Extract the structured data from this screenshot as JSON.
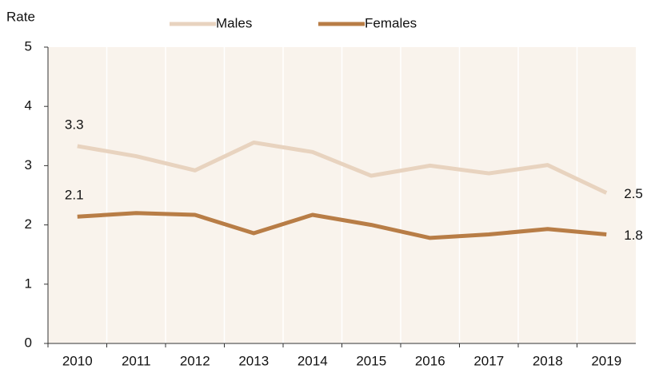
{
  "chart_data": {
    "type": "line",
    "y_label": "Rate",
    "categories": [
      "2010",
      "2011",
      "2012",
      "2013",
      "2014",
      "2015",
      "2016",
      "2017",
      "2018",
      "2019"
    ],
    "series": [
      {
        "name": "Males",
        "color": "#e8d3bf",
        "values": [
          3.33,
          3.16,
          2.92,
          3.39,
          3.23,
          2.83,
          3.0,
          2.87,
          3.01,
          2.54
        ],
        "value_labels": [
          "3.3",
          null,
          null,
          null,
          null,
          null,
          null,
          null,
          null,
          "2.5"
        ]
      },
      {
        "name": "Females",
        "color": "#b87d46",
        "values": [
          2.14,
          2.2,
          2.17,
          1.86,
          2.17,
          2.0,
          1.78,
          1.84,
          1.93,
          1.84
        ],
        "value_labels": [
          "2.1",
          null,
          null,
          null,
          null,
          null,
          null,
          null,
          null,
          "1.8"
        ]
      }
    ],
    "ylim": [
      0,
      5
    ],
    "yticks": [
      0,
      1,
      2,
      3,
      4,
      5
    ],
    "grid": true,
    "legend": "top"
  }
}
